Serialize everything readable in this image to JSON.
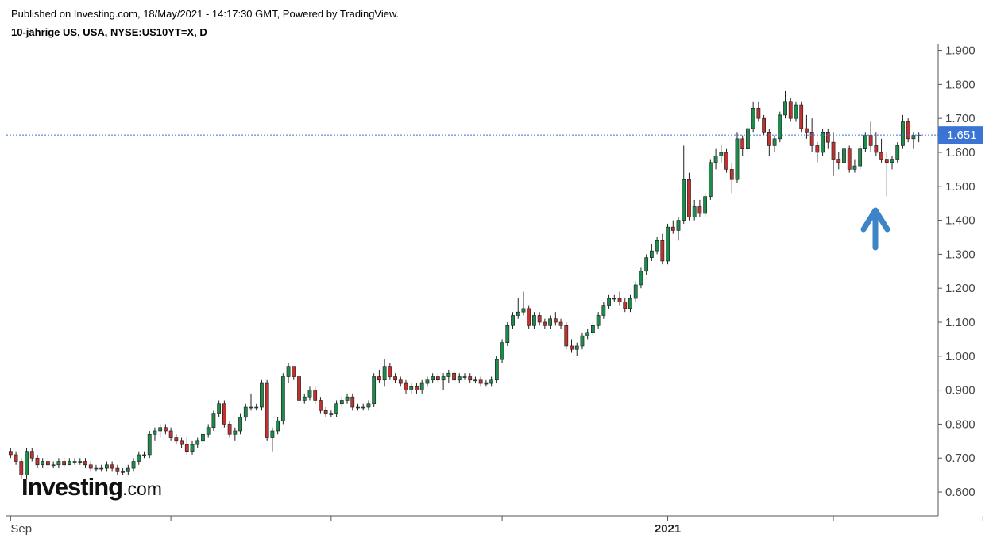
{
  "header": {
    "published": "Published on Investing.com, 18/May/2021 - 14:17:30 GMT, Powered by TradingView.",
    "title": "10-jährige US, USA, NYSE:US10YT=X, D"
  },
  "logo": {
    "main": "Investing",
    "suffix": ".com"
  },
  "colors": {
    "up": "#1e8a4c",
    "down": "#c0322f",
    "wick": "#222222",
    "last_price": "#3b74d4",
    "arrow": "#3d85c6"
  },
  "annotation": {
    "type": "arrow-up",
    "points_to_date": "2021-03-xx low"
  },
  "chart_data": {
    "type": "candlestick",
    "title": "",
    "xlabel": "",
    "ylabel": "",
    "y_ticks": [
      "0.600",
      "0.700",
      "0.800",
      "0.900",
      "1.000",
      "1.100",
      "1.200",
      "1.300",
      "1.400",
      "1.500",
      "1.600",
      "1.700",
      "1.800",
      "1.900"
    ],
    "x_ticks": [
      {
        "label": "Sep",
        "bold": false,
        "index": 0
      },
      {
        "label": "",
        "index": 30
      },
      {
        "label": "",
        "index": 60
      },
      {
        "label": "",
        "index": 92
      },
      {
        "label": "2021",
        "bold": true,
        "index": 123
      },
      {
        "label": "",
        "index": 154
      },
      {
        "label": "",
        "index": 182
      },
      {
        "label": "",
        "index": 213
      },
      {
        "label": "",
        "index": 243
      }
    ],
    "ylim": [
      0.53,
      1.92
    ],
    "last_price": "1.651",
    "grid": false,
    "candles": [
      [
        0.72,
        0.73,
        0.7,
        0.71
      ],
      [
        0.71,
        0.72,
        0.68,
        0.69
      ],
      [
        0.69,
        0.7,
        0.64,
        0.65
      ],
      [
        0.65,
        0.73,
        0.64,
        0.72
      ],
      [
        0.72,
        0.73,
        0.69,
        0.7
      ],
      [
        0.7,
        0.71,
        0.67,
        0.68
      ],
      [
        0.68,
        0.7,
        0.67,
        0.69
      ],
      [
        0.69,
        0.7,
        0.67,
        0.68
      ],
      [
        0.68,
        0.69,
        0.67,
        0.68
      ],
      [
        0.68,
        0.7,
        0.67,
        0.69
      ],
      [
        0.69,
        0.7,
        0.67,
        0.68
      ],
      [
        0.68,
        0.7,
        0.68,
        0.69
      ],
      [
        0.69,
        0.7,
        0.68,
        0.69
      ],
      [
        0.69,
        0.7,
        0.68,
        0.69
      ],
      [
        0.69,
        0.7,
        0.67,
        0.68
      ],
      [
        0.68,
        0.69,
        0.66,
        0.67
      ],
      [
        0.67,
        0.68,
        0.66,
        0.67
      ],
      [
        0.67,
        0.68,
        0.66,
        0.67
      ],
      [
        0.67,
        0.69,
        0.66,
        0.68
      ],
      [
        0.68,
        0.69,
        0.66,
        0.67
      ],
      [
        0.67,
        0.68,
        0.65,
        0.66
      ],
      [
        0.66,
        0.67,
        0.65,
        0.66
      ],
      [
        0.66,
        0.68,
        0.65,
        0.67
      ],
      [
        0.67,
        0.7,
        0.66,
        0.69
      ],
      [
        0.69,
        0.72,
        0.68,
        0.71
      ],
      [
        0.71,
        0.72,
        0.7,
        0.71
      ],
      [
        0.71,
        0.78,
        0.7,
        0.77
      ],
      [
        0.77,
        0.79,
        0.75,
        0.78
      ],
      [
        0.78,
        0.8,
        0.76,
        0.79
      ],
      [
        0.79,
        0.8,
        0.77,
        0.78
      ],
      [
        0.78,
        0.79,
        0.75,
        0.76
      ],
      [
        0.76,
        0.77,
        0.74,
        0.75
      ],
      [
        0.75,
        0.76,
        0.73,
        0.74
      ],
      [
        0.74,
        0.76,
        0.71,
        0.72
      ],
      [
        0.72,
        0.75,
        0.71,
        0.74
      ],
      [
        0.74,
        0.76,
        0.73,
        0.75
      ],
      [
        0.75,
        0.78,
        0.74,
        0.77
      ],
      [
        0.77,
        0.8,
        0.76,
        0.79
      ],
      [
        0.79,
        0.84,
        0.78,
        0.83
      ],
      [
        0.83,
        0.87,
        0.82,
        0.86
      ],
      [
        0.86,
        0.87,
        0.79,
        0.8
      ],
      [
        0.8,
        0.81,
        0.76,
        0.77
      ],
      [
        0.77,
        0.79,
        0.75,
        0.78
      ],
      [
        0.78,
        0.83,
        0.77,
        0.82
      ],
      [
        0.82,
        0.86,
        0.81,
        0.85
      ],
      [
        0.85,
        0.89,
        0.84,
        0.85
      ],
      [
        0.85,
        0.86,
        0.84,
        0.85
      ],
      [
        0.85,
        0.93,
        0.84,
        0.92
      ],
      [
        0.92,
        0.93,
        0.75,
        0.76
      ],
      [
        0.76,
        0.79,
        0.72,
        0.78
      ],
      [
        0.78,
        0.82,
        0.77,
        0.81
      ],
      [
        0.81,
        0.95,
        0.8,
        0.94
      ],
      [
        0.94,
        0.98,
        0.92,
        0.97
      ],
      [
        0.97,
        0.97,
        0.93,
        0.94
      ],
      [
        0.94,
        0.95,
        0.86,
        0.87
      ],
      [
        0.87,
        0.89,
        0.86,
        0.88
      ],
      [
        0.88,
        0.91,
        0.87,
        0.9
      ],
      [
        0.9,
        0.91,
        0.86,
        0.87
      ],
      [
        0.87,
        0.88,
        0.83,
        0.84
      ],
      [
        0.84,
        0.85,
        0.82,
        0.83
      ],
      [
        0.83,
        0.84,
        0.82,
        0.83
      ],
      [
        0.83,
        0.87,
        0.82,
        0.86
      ],
      [
        0.86,
        0.88,
        0.85,
        0.87
      ],
      [
        0.87,
        0.89,
        0.86,
        0.88
      ],
      [
        0.88,
        0.89,
        0.84,
        0.85
      ],
      [
        0.85,
        0.86,
        0.84,
        0.85
      ],
      [
        0.85,
        0.86,
        0.84,
        0.85
      ],
      [
        0.85,
        0.87,
        0.84,
        0.86
      ],
      [
        0.86,
        0.95,
        0.85,
        0.94
      ],
      [
        0.94,
        0.96,
        0.92,
        0.93
      ],
      [
        0.93,
        0.99,
        0.91,
        0.97
      ],
      [
        0.97,
        0.98,
        0.93,
        0.94
      ],
      [
        0.94,
        0.95,
        0.92,
        0.93
      ],
      [
        0.93,
        0.94,
        0.91,
        0.92
      ],
      [
        0.92,
        0.93,
        0.89,
        0.9
      ],
      [
        0.9,
        0.92,
        0.89,
        0.91
      ],
      [
        0.91,
        0.92,
        0.89,
        0.9
      ],
      [
        0.9,
        0.93,
        0.89,
        0.92
      ],
      [
        0.92,
        0.94,
        0.91,
        0.93
      ],
      [
        0.93,
        0.95,
        0.92,
        0.94
      ],
      [
        0.94,
        0.95,
        0.92,
        0.93
      ],
      [
        0.93,
        0.95,
        0.9,
        0.94
      ],
      [
        0.94,
        0.96,
        0.92,
        0.95
      ],
      [
        0.95,
        0.96,
        0.92,
        0.93
      ],
      [
        0.93,
        0.95,
        0.92,
        0.94
      ],
      [
        0.94,
        0.95,
        0.93,
        0.94
      ],
      [
        0.94,
        0.95,
        0.92,
        0.93
      ],
      [
        0.93,
        0.94,
        0.92,
        0.93
      ],
      [
        0.93,
        0.94,
        0.91,
        0.92
      ],
      [
        0.92,
        0.93,
        0.91,
        0.92
      ],
      [
        0.92,
        0.94,
        0.91,
        0.93
      ],
      [
        0.93,
        1.0,
        0.92,
        0.99
      ],
      [
        0.99,
        1.05,
        0.98,
        1.04
      ],
      [
        1.04,
        1.1,
        1.03,
        1.09
      ],
      [
        1.09,
        1.13,
        1.08,
        1.12
      ],
      [
        1.12,
        1.17,
        1.11,
        1.13
      ],
      [
        1.13,
        1.19,
        1.12,
        1.14
      ],
      [
        1.14,
        1.15,
        1.08,
        1.09
      ],
      [
        1.09,
        1.13,
        1.08,
        1.12
      ],
      [
        1.12,
        1.13,
        1.09,
        1.1
      ],
      [
        1.1,
        1.11,
        1.08,
        1.09
      ],
      [
        1.09,
        1.12,
        1.08,
        1.11
      ],
      [
        1.11,
        1.13,
        1.09,
        1.1
      ],
      [
        1.1,
        1.11,
        1.08,
        1.09
      ],
      [
        1.09,
        1.1,
        1.02,
        1.03
      ],
      [
        1.03,
        1.05,
        1.01,
        1.02
      ],
      [
        1.02,
        1.04,
        1.0,
        1.03
      ],
      [
        1.03,
        1.07,
        1.02,
        1.06
      ],
      [
        1.06,
        1.08,
        1.05,
        1.07
      ],
      [
        1.07,
        1.1,
        1.06,
        1.09
      ],
      [
        1.09,
        1.13,
        1.08,
        1.12
      ],
      [
        1.12,
        1.16,
        1.11,
        1.15
      ],
      [
        1.15,
        1.18,
        1.14,
        1.17
      ],
      [
        1.17,
        1.18,
        1.16,
        1.17
      ],
      [
        1.17,
        1.19,
        1.15,
        1.16
      ],
      [
        1.16,
        1.17,
        1.13,
        1.14
      ],
      [
        1.14,
        1.18,
        1.13,
        1.17
      ],
      [
        1.17,
        1.22,
        1.16,
        1.21
      ],
      [
        1.21,
        1.26,
        1.2,
        1.25
      ],
      [
        1.25,
        1.3,
        1.24,
        1.29
      ],
      [
        1.29,
        1.33,
        1.28,
        1.31
      ],
      [
        1.31,
        1.35,
        1.3,
        1.34
      ],
      [
        1.34,
        1.36,
        1.27,
        1.28
      ],
      [
        1.28,
        1.39,
        1.27,
        1.38
      ],
      [
        1.38,
        1.4,
        1.36,
        1.37
      ],
      [
        1.37,
        1.41,
        1.34,
        1.4
      ],
      [
        1.4,
        1.62,
        1.39,
        1.52
      ],
      [
        1.52,
        1.54,
        1.4,
        1.41
      ],
      [
        1.41,
        1.46,
        1.4,
        1.44
      ],
      [
        1.44,
        1.46,
        1.41,
        1.42
      ],
      [
        1.42,
        1.48,
        1.41,
        1.47
      ],
      [
        1.47,
        1.58,
        1.46,
        1.57
      ],
      [
        1.57,
        1.61,
        1.55,
        1.59
      ],
      [
        1.59,
        1.62,
        1.57,
        1.6
      ],
      [
        1.6,
        1.61,
        1.54,
        1.55
      ],
      [
        1.55,
        1.57,
        1.48,
        1.52
      ],
      [
        1.52,
        1.66,
        1.51,
        1.64
      ],
      [
        1.64,
        1.65,
        1.59,
        1.61
      ],
      [
        1.61,
        1.68,
        1.6,
        1.67
      ],
      [
        1.67,
        1.75,
        1.66,
        1.73
      ],
      [
        1.73,
        1.75,
        1.69,
        1.7
      ],
      [
        1.7,
        1.71,
        1.65,
        1.66
      ],
      [
        1.66,
        1.67,
        1.59,
        1.62
      ],
      [
        1.62,
        1.65,
        1.6,
        1.64
      ],
      [
        1.64,
        1.72,
        1.63,
        1.71
      ],
      [
        1.71,
        1.78,
        1.7,
        1.75
      ],
      [
        1.75,
        1.76,
        1.69,
        1.7
      ],
      [
        1.7,
        1.75,
        1.69,
        1.74
      ],
      [
        1.74,
        1.75,
        1.66,
        1.67
      ],
      [
        1.67,
        1.71,
        1.64,
        1.66
      ],
      [
        1.66,
        1.7,
        1.6,
        1.62
      ],
      [
        1.62,
        1.63,
        1.57,
        1.6
      ],
      [
        1.6,
        1.67,
        1.59,
        1.66
      ],
      [
        1.66,
        1.67,
        1.61,
        1.63
      ],
      [
        1.63,
        1.66,
        1.53,
        1.58
      ],
      [
        1.58,
        1.6,
        1.55,
        1.57
      ],
      [
        1.57,
        1.62,
        1.56,
        1.61
      ],
      [
        1.61,
        1.62,
        1.54,
        1.55
      ],
      [
        1.55,
        1.58,
        1.54,
        1.56
      ],
      [
        1.56,
        1.62,
        1.55,
        1.61
      ],
      [
        1.61,
        1.66,
        1.6,
        1.65
      ],
      [
        1.65,
        1.69,
        1.6,
        1.62
      ],
      [
        1.62,
        1.66,
        1.59,
        1.6
      ],
      [
        1.6,
        1.64,
        1.57,
        1.58
      ],
      [
        1.58,
        1.6,
        1.47,
        1.57
      ],
      [
        1.57,
        1.59,
        1.55,
        1.58
      ],
      [
        1.58,
        1.63,
        1.57,
        1.62
      ],
      [
        1.62,
        1.71,
        1.61,
        1.69
      ],
      [
        1.69,
        1.7,
        1.63,
        1.64
      ],
      [
        1.64,
        1.66,
        1.61,
        1.65
      ],
      [
        1.65,
        1.66,
        1.63,
        1.65
      ]
    ]
  }
}
